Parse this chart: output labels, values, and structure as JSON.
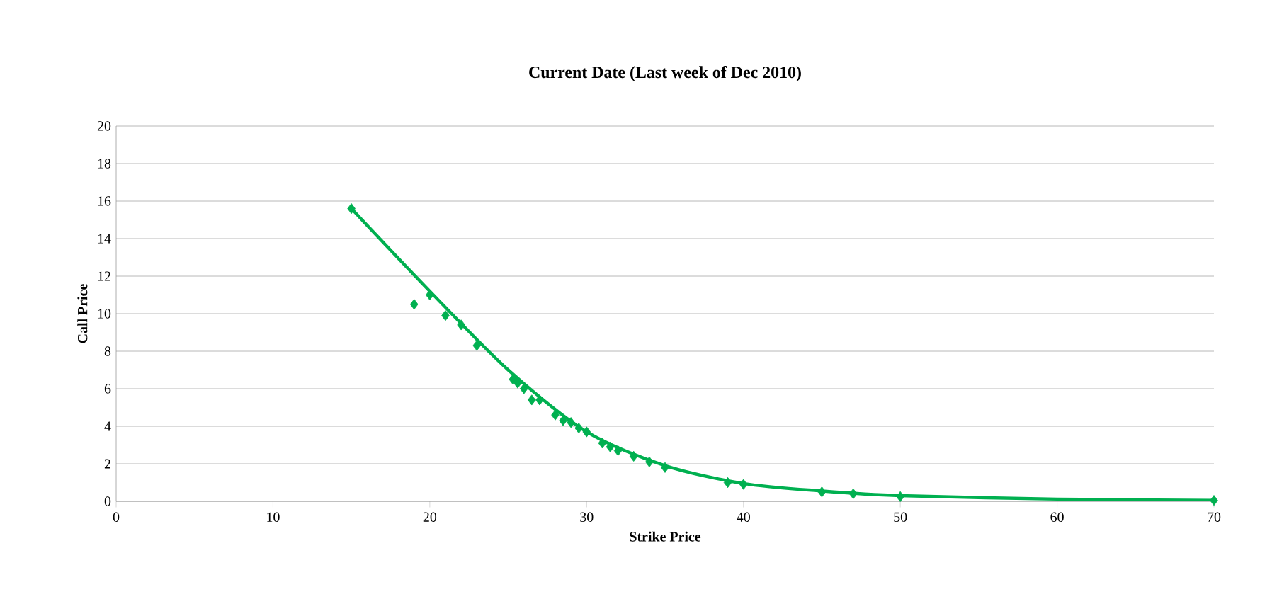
{
  "chart_data": {
    "type": "scatter",
    "title": "Current Date (Last week of Dec 2010)",
    "xlabel": "Strike Price",
    "ylabel": "Call Price",
    "xlim": [
      0,
      70
    ],
    "xticks": [
      0,
      10,
      20,
      30,
      40,
      50,
      60,
      70
    ],
    "ylim": [
      0,
      20
    ],
    "yticks": [
      0,
      2,
      4,
      6,
      8,
      10,
      12,
      14,
      16,
      18,
      20
    ],
    "grid": "y",
    "marker": "diamond",
    "series": [
      {
        "color": "#00b050",
        "x": [
          15,
          19,
          20,
          21,
          22,
          23,
          25.3,
          25.6,
          26,
          26.5,
          27,
          28,
          28.5,
          29,
          29.5,
          30,
          31,
          31.5,
          32,
          33,
          34,
          35,
          39,
          40,
          45,
          47,
          50,
          70
        ],
        "values": [
          15.6,
          10.5,
          11.0,
          9.9,
          9.4,
          8.3,
          6.5,
          6.3,
          6.0,
          5.4,
          5.4,
          4.6,
          4.3,
          4.2,
          3.9,
          3.7,
          3.1,
          2.9,
          2.7,
          2.4,
          2.1,
          1.8,
          1.0,
          0.9,
          0.5,
          0.4,
          0.25,
          0.05
        ]
      },
      {
        "type": "line",
        "color": "#00b050",
        "marker": "none",
        "x": [
          15,
          20,
          25,
          30,
          35,
          40,
          45,
          50,
          60,
          70
        ],
        "values": [
          15.6,
          11.2,
          7.0,
          3.7,
          1.9,
          0.95,
          0.55,
          0.3,
          0.12,
          0.05
        ]
      }
    ]
  }
}
